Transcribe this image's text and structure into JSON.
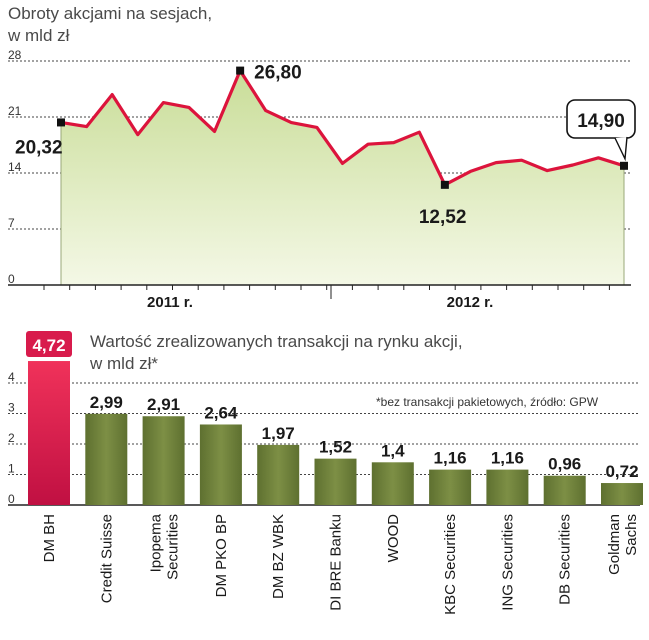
{
  "chart_data": [
    {
      "type": "area",
      "title": "Obroty akcjami na sesjach,",
      "subtitle": "w mld zł",
      "ylim": [
        0,
        28
      ],
      "yticks": [
        0,
        7,
        14,
        21,
        28
      ],
      "year_labels": [
        "2011 r.",
        "2012 r."
      ],
      "values": [
        20.32,
        19.8,
        23.8,
        18.8,
        22.8,
        22.2,
        19.2,
        26.8,
        21.8,
        20.3,
        19.7,
        15.2,
        17.6,
        17.8,
        19.1,
        12.52,
        14.2,
        15.3,
        15.6,
        14.3,
        15.0,
        15.9,
        14.9
      ],
      "annotations": [
        {
          "index": 0,
          "label": "20,32"
        },
        {
          "index": 7,
          "label": "26,80"
        },
        {
          "index": 15,
          "label": "12,52"
        },
        {
          "index": 22,
          "label": "14,90"
        }
      ],
      "grid": true,
      "colors": {
        "line": "#dc143c",
        "fill_top": "#c9dd98",
        "fill_bottom": "#f4f8e6"
      }
    },
    {
      "type": "bar",
      "title": "Wartość zrealizowanych transakcji na rynku akcji,",
      "subtitle": "w mld zł*",
      "note": "*bez transakcji pakietowych, źródło: GPW",
      "ylim": [
        0,
        4.72
      ],
      "yticks": [
        0,
        1,
        2,
        3,
        4
      ],
      "categories": [
        [
          "DM BH"
        ],
        [
          "Credit Suisse"
        ],
        [
          "Ipopema",
          "Securities"
        ],
        [
          "DM PKO BP"
        ],
        [
          "DM BZ WBK"
        ],
        [
          "DI BRE Banku"
        ],
        [
          "WOOD"
        ],
        [
          "KBC Securities"
        ],
        [
          "ING Securities"
        ],
        [
          "DB Securities"
        ],
        [
          "Goldman",
          "Sachs"
        ]
      ],
      "values": [
        4.72,
        2.99,
        2.91,
        2.64,
        1.97,
        1.52,
        1.4,
        1.16,
        1.16,
        0.96,
        0.72
      ],
      "value_labels": [
        "4,72",
        "2,99",
        "2,91",
        "2,64",
        "1,97",
        "1,52",
        "1,4",
        "1,16",
        "1,16",
        "0,96",
        "0,72"
      ],
      "grid": true,
      "colors": {
        "highlight": "#d81b4c",
        "bar": "#6b7d3a",
        "bar_light": "#8c9c55"
      }
    }
  ]
}
